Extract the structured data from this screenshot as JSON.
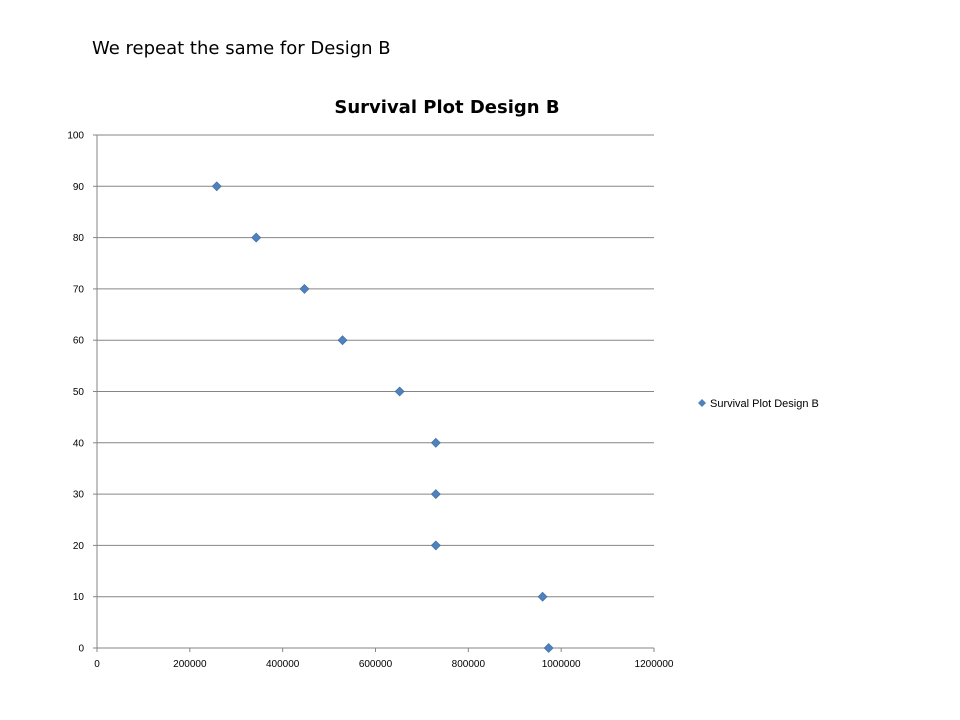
{
  "heading": "We repeat the same for Design B",
  "chart_data": {
    "type": "scatter",
    "title": "Survival Plot Design B",
    "xlabel": "",
    "ylabel": "",
    "xlim": [
      0,
      1200000
    ],
    "ylim": [
      0,
      100
    ],
    "x_ticks": [
      0,
      200000,
      400000,
      600000,
      800000,
      1000000,
      1200000
    ],
    "y_ticks": [
      0,
      10,
      20,
      30,
      40,
      50,
      60,
      70,
      80,
      90,
      100
    ],
    "grid": true,
    "legend_position": "right",
    "marker": "diamond",
    "series": [
      {
        "name": "Survival Plot Design B",
        "color": "#4f81bd",
        "points": [
          {
            "x": 258000,
            "y": 90
          },
          {
            "x": 343000,
            "y": 80
          },
          {
            "x": 447000,
            "y": 70
          },
          {
            "x": 529000,
            "y": 60
          },
          {
            "x": 652000,
            "y": 50
          },
          {
            "x": 730000,
            "y": 40
          },
          {
            "x": 730000,
            "y": 30
          },
          {
            "x": 730000,
            "y": 20
          },
          {
            "x": 960000,
            "y": 10
          },
          {
            "x": 973000,
            "y": 0
          }
        ]
      }
    ]
  }
}
